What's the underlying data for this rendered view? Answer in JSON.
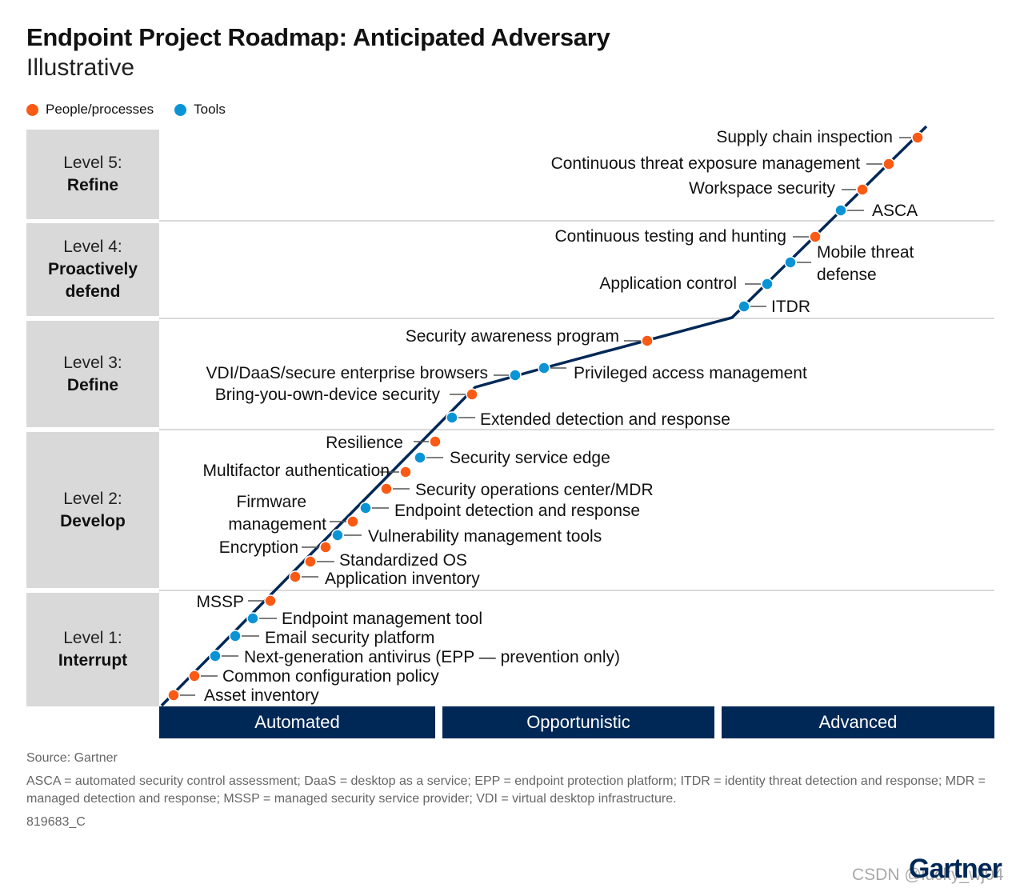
{
  "title": "Endpoint Project Roadmap: Anticipated Adversary",
  "subtitle": "Illustrative",
  "legend": [
    {
      "label": "People/processes",
      "color": "#fa5a14"
    },
    {
      "label": "Tools",
      "color": "#0a94d5"
    }
  ],
  "colors": {
    "people": "#fa5a14",
    "tools": "#0a94d5",
    "line": "#002856",
    "band": "#002856",
    "level_box": "#d9d9d9"
  },
  "levels": [
    {
      "level": "Level 5:",
      "name": "Refine"
    },
    {
      "level": "Level 4:",
      "name": "Proactively defend"
    },
    {
      "level": "Level 3:",
      "name": "Define"
    },
    {
      "level": "Level 2:",
      "name": "Develop"
    },
    {
      "level": "Level 1:",
      "name": "Interrupt"
    }
  ],
  "stages": [
    "Automated",
    "Opportunistic",
    "Advanced"
  ],
  "items": [
    {
      "label": "Asset inventory",
      "type": "people"
    },
    {
      "label": "Common configuration policy",
      "type": "people"
    },
    {
      "label": "Next-generation antivirus (EPP — prevention only)",
      "type": "tools"
    },
    {
      "label": "Email security platform",
      "type": "tools"
    },
    {
      "label": "Endpoint management tool",
      "type": "tools"
    },
    {
      "label": "MSSP",
      "type": "people"
    },
    {
      "label": "Application inventory",
      "type": "people"
    },
    {
      "label": "Standardized OS",
      "type": "people"
    },
    {
      "label": "Encryption",
      "type": "people"
    },
    {
      "label": "Vulnerability management tools",
      "type": "tools"
    },
    {
      "label": "Firmware management",
      "type": "people"
    },
    {
      "label": "Endpoint detection and response",
      "type": "tools"
    },
    {
      "label": "Security operations center/MDR",
      "type": "people"
    },
    {
      "label": "Multifactor authentication",
      "type": "people"
    },
    {
      "label": "Security service edge",
      "type": "tools"
    },
    {
      "label": "Resilience",
      "type": "people"
    },
    {
      "label": "Extended detection and response",
      "type": "tools"
    },
    {
      "label": "Bring-you-own-device security",
      "type": "people"
    },
    {
      "label": "VDI/DaaS/secure enterprise browsers",
      "type": "tools"
    },
    {
      "label": "Privileged access management",
      "type": "tools"
    },
    {
      "label": "Security awareness program",
      "type": "people"
    },
    {
      "label": "ITDR",
      "type": "tools"
    },
    {
      "label": "Application control",
      "type": "tools"
    },
    {
      "label": "Mobile threat defense",
      "type": "tools"
    },
    {
      "label": "Continuous testing and hunting",
      "type": "people"
    },
    {
      "label": "ASCA",
      "type": "tools"
    },
    {
      "label": "Workspace security",
      "type": "people"
    },
    {
      "label": "Continuous threat exposure management",
      "type": "people"
    },
    {
      "label": "Supply chain inspection",
      "type": "people"
    }
  ],
  "footer": {
    "source": "Source: Gartner",
    "abbreviations": "ASCA = automated security control assessment; DaaS = desktop as a service; EPP = endpoint protection platform; ITDR = identity threat detection and response; MDR = managed detection and response; MSSP = managed security service provider; VDI = virtual desktop infrastructure.",
    "code": "819683_C",
    "logo": "Gartner",
    "watermark": "CSDN @lucky_wj04"
  }
}
